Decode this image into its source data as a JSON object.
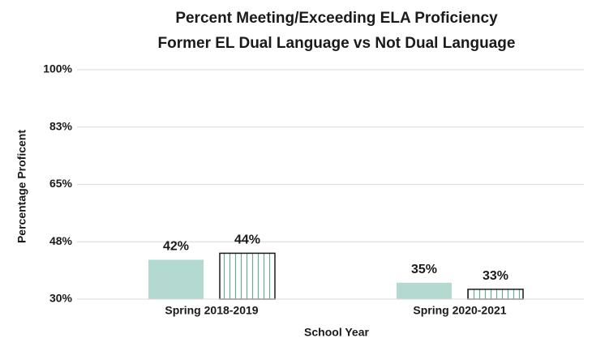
{
  "chart_data": {
    "type": "bar",
    "title": [
      "Percent Meeting/Exceeding ELA Proficiency",
      "Former EL Dual Language vs Not Dual Language"
    ],
    "xlabel": "School Year",
    "ylabel": "Percentage Proficent",
    "categories": [
      "Spring 2018-2019",
      "Spring 2020-2021"
    ],
    "series": [
      {
        "color": "#b3d9d0",
        "pattern": "solid",
        "values": [
          42,
          35
        ],
        "value_labels": [
          "42%",
          "35%"
        ]
      },
      {
        "color": "#6aab96",
        "pattern": "vertical-stripes",
        "values": [
          44,
          33
        ],
        "value_labels": [
          "44%",
          "33%"
        ]
      }
    ],
    "ylim": [
      30,
      100
    ],
    "yticks": [
      {
        "value": 30,
        "label": "30%"
      },
      {
        "value": 47.5,
        "label": "48%"
      },
      {
        "value": 65,
        "label": "65%"
      },
      {
        "value": 82.5,
        "label": "83%"
      },
      {
        "value": 100,
        "label": "100%"
      }
    ],
    "grid": true
  }
}
